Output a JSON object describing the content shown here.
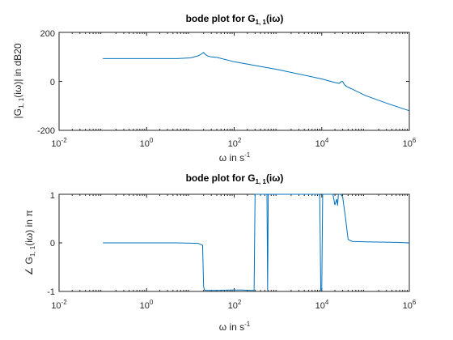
{
  "colors": {
    "series": "#0072BD",
    "axis": "#262626",
    "background": "#ffffff"
  },
  "chart_data": [
    {
      "type": "line",
      "title_main": "bode plot for G",
      "title_sub": "1, 1",
      "title_tail": "(iω)",
      "xlabel_main": "ω in s",
      "xlabel_sup": "-1",
      "ylabel_pre": "|G",
      "ylabel_sub": "1, 1",
      "ylabel_post": "(iω)| in dB20",
      "xscale": "log",
      "xlim": [
        0.01,
        1000000
      ],
      "ylim": [
        -200,
        200
      ],
      "xticks": [
        {
          "base": "10",
          "exp": "-2",
          "value": 0.01
        },
        {
          "base": "10",
          "exp": "0",
          "value": 1
        },
        {
          "base": "10",
          "exp": "2",
          "value": 100
        },
        {
          "base": "10",
          "exp": "4",
          "value": 10000
        },
        {
          "base": "10",
          "exp": "6",
          "value": 1000000
        }
      ],
      "yticks": [
        {
          "label": "200",
          "value": 200
        },
        {
          "label": "0",
          "value": 0
        },
        {
          "label": "-200",
          "value": -200
        }
      ],
      "grid": false,
      "series": [
        {
          "x": [
            0.1,
            1,
            5,
            10,
            15,
            18,
            20,
            22,
            25,
            30,
            40,
            100,
            1000,
            10000,
            20000,
            25000,
            28000,
            30000,
            32000,
            35000,
            40000,
            50000,
            100000,
            300000,
            1000000
          ],
          "y": [
            93,
            93,
            93,
            96,
            104,
            112,
            118,
            110,
            103,
            100,
            98,
            80,
            48,
            10,
            -5,
            -8,
            -1,
            0,
            -10,
            -18,
            -24,
            -32,
            -58,
            -89,
            -120
          ]
        }
      ]
    },
    {
      "type": "line",
      "title_main": "bode plot for G",
      "title_sub": "1, 1",
      "title_tail": "(iω)",
      "xlabel_main": "ω in s",
      "xlabel_sup": "-1",
      "ylabel_pre": "∠ G",
      "ylabel_sub": "1, 1",
      "ylabel_post": "(iω) in π",
      "xscale": "log",
      "xlim": [
        0.01,
        1000000
      ],
      "ylim": [
        -1,
        1
      ],
      "xticks": [
        {
          "base": "10",
          "exp": "-2",
          "value": 0.01
        },
        {
          "base": "10",
          "exp": "0",
          "value": 1
        },
        {
          "base": "10",
          "exp": "2",
          "value": 100
        },
        {
          "base": "10",
          "exp": "4",
          "value": 10000
        },
        {
          "base": "10",
          "exp": "6",
          "value": 1000000
        }
      ],
      "yticks": [
        {
          "label": "1",
          "value": 1
        },
        {
          "label": "0",
          "value": 0
        },
        {
          "label": "-1",
          "value": -1
        }
      ],
      "grid": false,
      "series": [
        {
          "x": [
            0.1,
            5,
            15,
            19,
            20,
            21,
            23,
            40,
            80,
            150,
            250,
            285,
            300,
            320,
            400,
            500,
            560,
            580,
            600,
            620,
            700,
            2000,
            9000,
            9500,
            10000,
            10500,
            11000,
            11500,
            12000,
            13000,
            15000,
            18000,
            20000,
            22000,
            23000,
            24000,
            25000,
            27000,
            30000,
            35000,
            40000,
            50000,
            100000,
            500000,
            1000000
          ],
          "y": [
            0,
            0,
            -0.01,
            -0.05,
            -0.9,
            -0.97,
            -0.98,
            -0.98,
            -0.97,
            -0.97,
            -0.98,
            -0.98,
            1,
            1,
            1,
            1,
            1,
            -0.98,
            1,
            1,
            1,
            1,
            1,
            -0.97,
            -0.98,
            1,
            1,
            1,
            1,
            1,
            1,
            1,
            0.78,
            0.9,
            0.77,
            1,
            1,
            1,
            0.95,
            0.5,
            0.07,
            0.03,
            0.02,
            0.01,
            0.0
          ]
        }
      ]
    }
  ]
}
